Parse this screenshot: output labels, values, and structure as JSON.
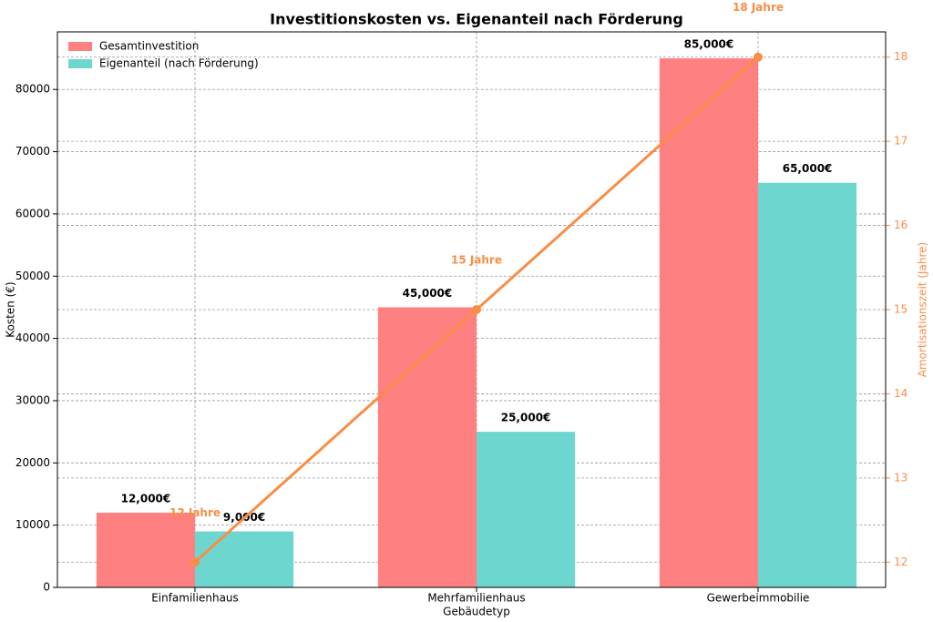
{
  "chart_data": {
    "type": "bar",
    "title": "Investitionskosten vs. Eigenanteil nach Förderung",
    "x_label": "Gebäudetyp",
    "y_label": "Kosten (€)",
    "y2_label": "Amortisationszeit (Jahre)",
    "categories": [
      "Einfamilienhaus",
      "Mehrfamilienhaus",
      "Gewerbeimmobilie"
    ],
    "series": [
      {
        "name": "Gesamtinvestition",
        "color": "#ff8080",
        "values": [
          12000,
          45000,
          85000
        ],
        "value_labels": [
          "12,000€",
          "45,000€",
          "85,000€"
        ]
      },
      {
        "name": "Eigenanteil (nach Förderung)",
        "color": "#6dd6cf",
        "values": [
          9000,
          25000,
          65000
        ],
        "value_labels": [
          "9,000€",
          "25,000€",
          "65,000€"
        ]
      },
      {
        "type": "line",
        "axis": "y2",
        "color": "#f98d45",
        "values": [
          12,
          15,
          18
        ],
        "value_labels": [
          "12 Jahre",
          "15 Jahre",
          "18 Jahre"
        ]
      }
    ],
    "ylim": [
      0,
      89250
    ],
    "yticks": [
      0,
      10000,
      20000,
      30000,
      40000,
      50000,
      60000,
      70000,
      80000
    ],
    "y2lim": [
      11.7,
      18.3
    ],
    "y2ticks": [
      12,
      13,
      14,
      15,
      16,
      17,
      18
    ],
    "grid": true,
    "legend": "upper left"
  }
}
